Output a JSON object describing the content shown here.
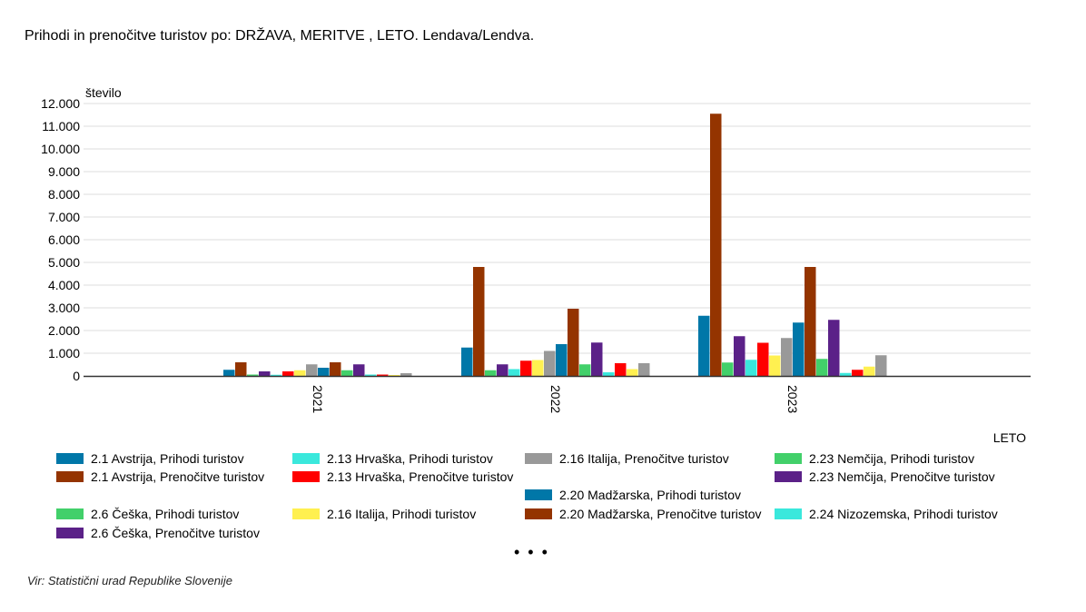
{
  "title": "Prihodi in prenočitve turistov po: DRŽAVA, MERITVE ,  LETO. Lendava/Lendva.",
  "more_indicator": "• • •",
  "source": "Vir: Statistični urad Republike Slovenije",
  "chart_data": {
    "type": "bar",
    "ylabel": "število",
    "xlabel": "LETO",
    "ylim": [
      0,
      12000
    ],
    "yticks": [
      "0",
      "1.000",
      "2.000",
      "3.000",
      "4.000",
      "5.000",
      "6.000",
      "7.000",
      "8.000",
      "9.000",
      "10.000",
      "11.000",
      "12.000"
    ],
    "grid": true,
    "legend_position": "bottom",
    "categories": [
      "2021",
      "2022",
      "2023"
    ],
    "series": [
      {
        "name": "2.1 Avstrija, Prihodi turistov",
        "color": "#0077A8",
        "values": [
          270,
          1250,
          2650
        ]
      },
      {
        "name": "2.1 Avstrija, Prenočitve turistov",
        "color": "#943400",
        "values": [
          600,
          4800,
          11550
        ]
      },
      {
        "name": "2.6 Češka, Prihodi turistov",
        "color": "#42D06A",
        "values": [
          60,
          250,
          590
        ]
      },
      {
        "name": "2.6 Češka, Prenočitve turistov",
        "color": "#5B2188",
        "values": [
          200,
          510,
          1750
        ]
      },
      {
        "name": "2.13 Hrvaška, Prihodi turistov",
        "color": "#3AE8DC",
        "values": [
          50,
          300,
          710
        ]
      },
      {
        "name": "2.13 Hrvaška, Prenočitve turistov",
        "color": "#FF0000",
        "values": [
          200,
          670,
          1460
        ]
      },
      {
        "name": "2.16 Italija, Prihodi turistov",
        "color": "#FFF050",
        "values": [
          250,
          700,
          900
        ]
      },
      {
        "name": "2.16 Italija, Prenočitve turistov",
        "color": "#999999",
        "values": [
          510,
          1100,
          1670
        ]
      },
      {
        "name": "2.20 Madžarska, Prihodi turistov",
        "color": "#0077A8",
        "values": [
          360,
          1400,
          2350
        ]
      },
      {
        "name": "2.20 Madžarska, Prenočitve turistov",
        "color": "#943400",
        "values": [
          600,
          2960,
          4800
        ]
      },
      {
        "name": "2.23 Nemčija, Prihodi turistov",
        "color": "#42D06A",
        "values": [
          250,
          510,
          750
        ]
      },
      {
        "name": "2.23 Nemčija, Prenočitve turistov",
        "color": "#5B2188",
        "values": [
          510,
          1470,
          2470
        ]
      },
      {
        "name": "2.24 Nizozemska, Prihodi turistov",
        "color": "#3AE8DC",
        "values": [
          60,
          160,
          130
        ]
      },
      {
        "color": "#FF0000",
        "values": [
          60,
          560,
          270
        ]
      },
      {
        "color": "#FFF050",
        "values": [
          40,
          300,
          410
        ]
      },
      {
        "color": "#999999",
        "values": [
          120,
          560,
          910
        ]
      }
    ]
  }
}
